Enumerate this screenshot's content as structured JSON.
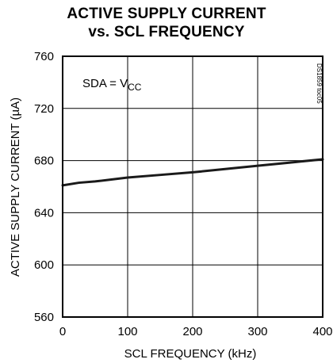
{
  "chart_data": {
    "type": "line",
    "title_line1": "ACTIVE SUPPLY CURRENT",
    "title_line2": "vs. SCL FREQUENCY",
    "xlabel": "SCL FREQUENCY (kHz)",
    "ylabel": "ACTIVE SUPPLY CURRENT (µA)",
    "xlim": [
      0,
      400
    ],
    "ylim": [
      560,
      760
    ],
    "xticks": [
      0,
      100,
      200,
      300,
      400
    ],
    "yticks": [
      560,
      600,
      640,
      680,
      720,
      760
    ],
    "grid": true,
    "annotation": {
      "text_main": "SDA = V",
      "text_sub": "CC"
    },
    "figure_code": "DS1859 toc05",
    "series": [
      {
        "x": [
          0,
          25,
          50,
          100,
          150,
          200,
          250,
          300,
          350,
          400
        ],
        "y": [
          661,
          663,
          664,
          667,
          669,
          671,
          673.5,
          676,
          678.5,
          681
        ]
      }
    ],
    "colors": {
      "line": "#1a1a1a",
      "grid": "#000000",
      "frame": "#000000"
    }
  }
}
